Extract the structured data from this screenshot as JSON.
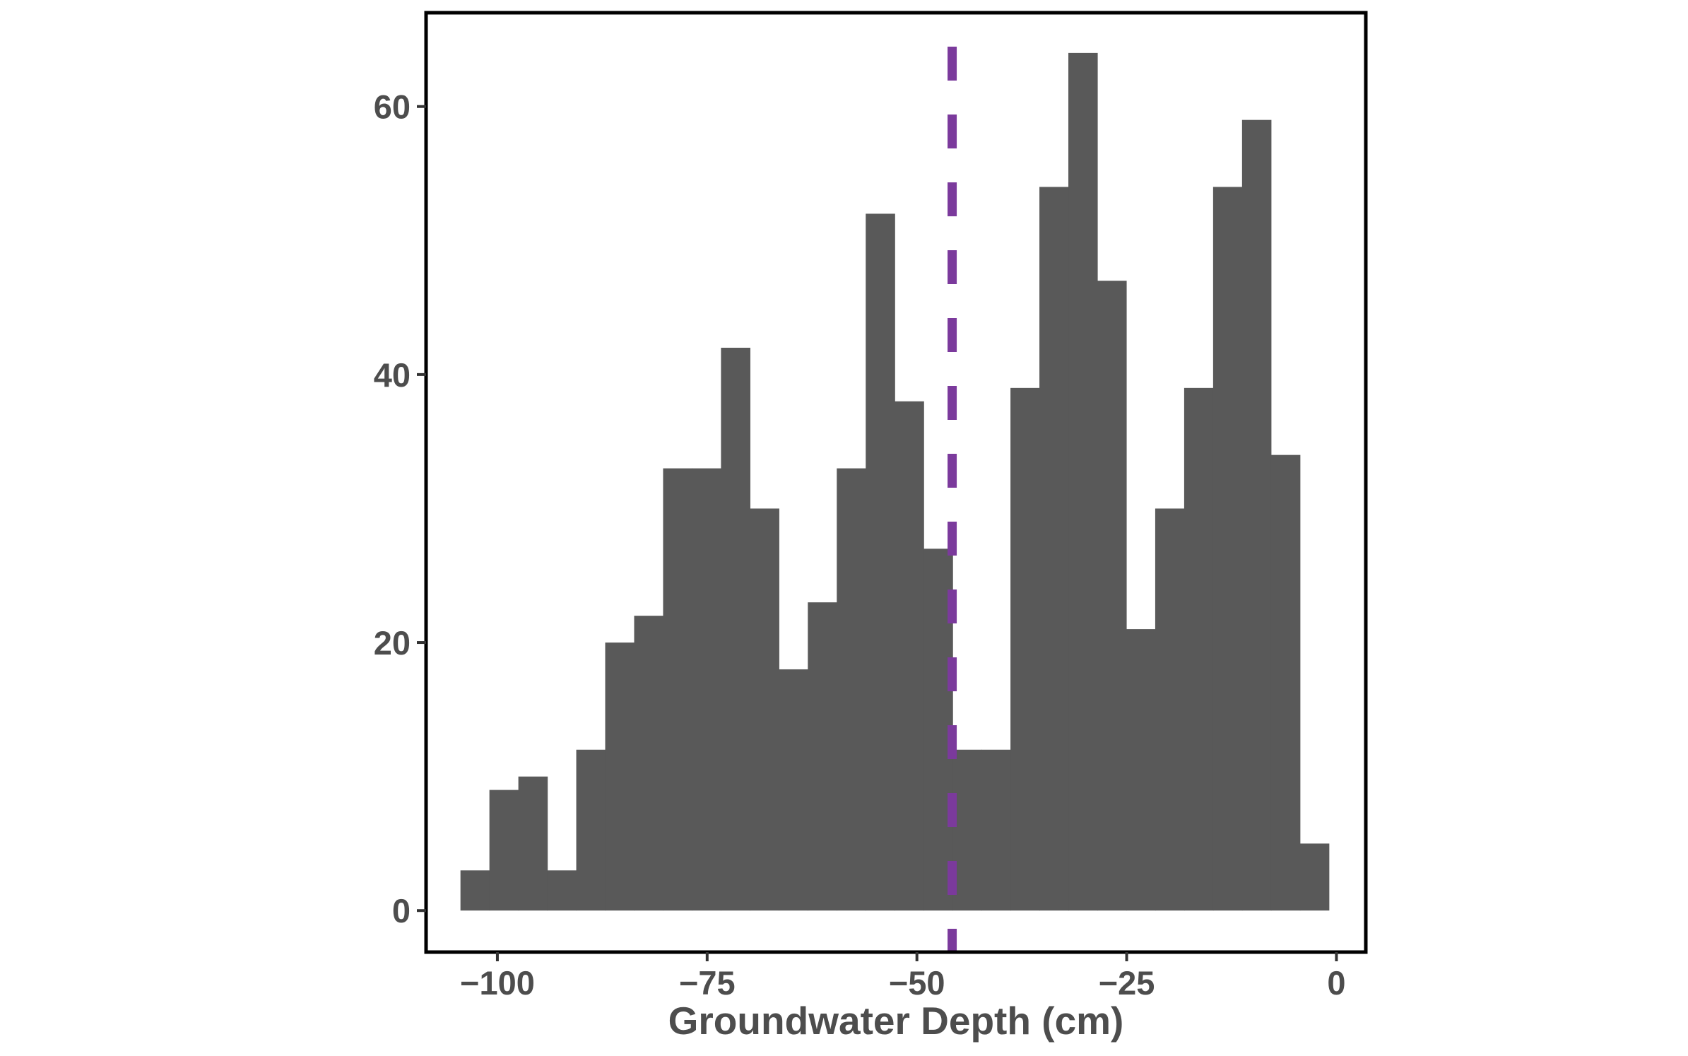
{
  "chart_data": {
    "type": "bar",
    "subtype": "histogram",
    "title": "",
    "xlabel": "Groundwater Depth (cm)",
    "ylabel": "",
    "xlim": [
      -108.5,
      3.5
    ],
    "ylim": [
      -3.1,
      67
    ],
    "bin_width": 3.45,
    "bins": [
      {
        "x0": -104.4,
        "x1": -100.95,
        "count": 3
      },
      {
        "x0": -100.95,
        "x1": -97.5,
        "count": 9
      },
      {
        "x0": -97.5,
        "x1": -94.05,
        "count": 10
      },
      {
        "x0": -94.05,
        "x1": -90.6,
        "count": 3
      },
      {
        "x0": -90.6,
        "x1": -87.15,
        "count": 12
      },
      {
        "x0": -87.15,
        "x1": -83.7,
        "count": 20
      },
      {
        "x0": -83.7,
        "x1": -80.25,
        "count": 22
      },
      {
        "x0": -80.25,
        "x1": -76.8,
        "count": 33
      },
      {
        "x0": -76.8,
        "x1": -73.35,
        "count": 33
      },
      {
        "x0": -73.35,
        "x1": -69.9,
        "count": 42
      },
      {
        "x0": -69.9,
        "x1": -66.45,
        "count": 30
      },
      {
        "x0": -66.45,
        "x1": -63.0,
        "count": 18
      },
      {
        "x0": -63.0,
        "x1": -59.55,
        "count": 23
      },
      {
        "x0": -59.55,
        "x1": -56.1,
        "count": 33
      },
      {
        "x0": -56.1,
        "x1": -52.65,
        "count": 52
      },
      {
        "x0": -52.65,
        "x1": -49.2,
        "count": 38
      },
      {
        "x0": -49.2,
        "x1": -45.75,
        "count": 27
      },
      {
        "x0": -45.75,
        "x1": -42.3,
        "count": 12
      },
      {
        "x0": -42.3,
        "x1": -38.85,
        "count": 12
      },
      {
        "x0": -38.85,
        "x1": -35.4,
        "count": 39
      },
      {
        "x0": -35.4,
        "x1": -31.95,
        "count": 54
      },
      {
        "x0": -31.95,
        "x1": -28.5,
        "count": 64
      },
      {
        "x0": -28.5,
        "x1": -25.05,
        "count": 47
      },
      {
        "x0": -25.05,
        "x1": -21.6,
        "count": 21
      },
      {
        "x0": -21.6,
        "x1": -18.15,
        "count": 30
      },
      {
        "x0": -18.15,
        "x1": -14.7,
        "count": 39
      },
      {
        "x0": -14.7,
        "x1": -11.25,
        "count": 54
      },
      {
        "x0": -11.25,
        "x1": -7.8,
        "count": 59
      },
      {
        "x0": -7.8,
        "x1": -4.35,
        "count": 34
      },
      {
        "x0": -4.35,
        "x1": -0.9,
        "count": 5
      }
    ],
    "x_ticks": [
      {
        "value": -100,
        "label": "−100"
      },
      {
        "value": -75,
        "label": "−75"
      },
      {
        "value": -50,
        "label": "−50"
      },
      {
        "value": -25,
        "label": "−25"
      },
      {
        "value": 0,
        "label": "0"
      }
    ],
    "y_ticks": [
      {
        "value": 0,
        "label": "0"
      },
      {
        "value": 20,
        "label": "20"
      },
      {
        "value": 40,
        "label": "40"
      },
      {
        "value": 60,
        "label": "60"
      }
    ],
    "reference_line": {
      "orientation": "vertical",
      "x": -45.8,
      "style": "dashed",
      "color": "#7b3a9c"
    },
    "bar_color": "#595959",
    "grid": false,
    "legend": "none"
  }
}
